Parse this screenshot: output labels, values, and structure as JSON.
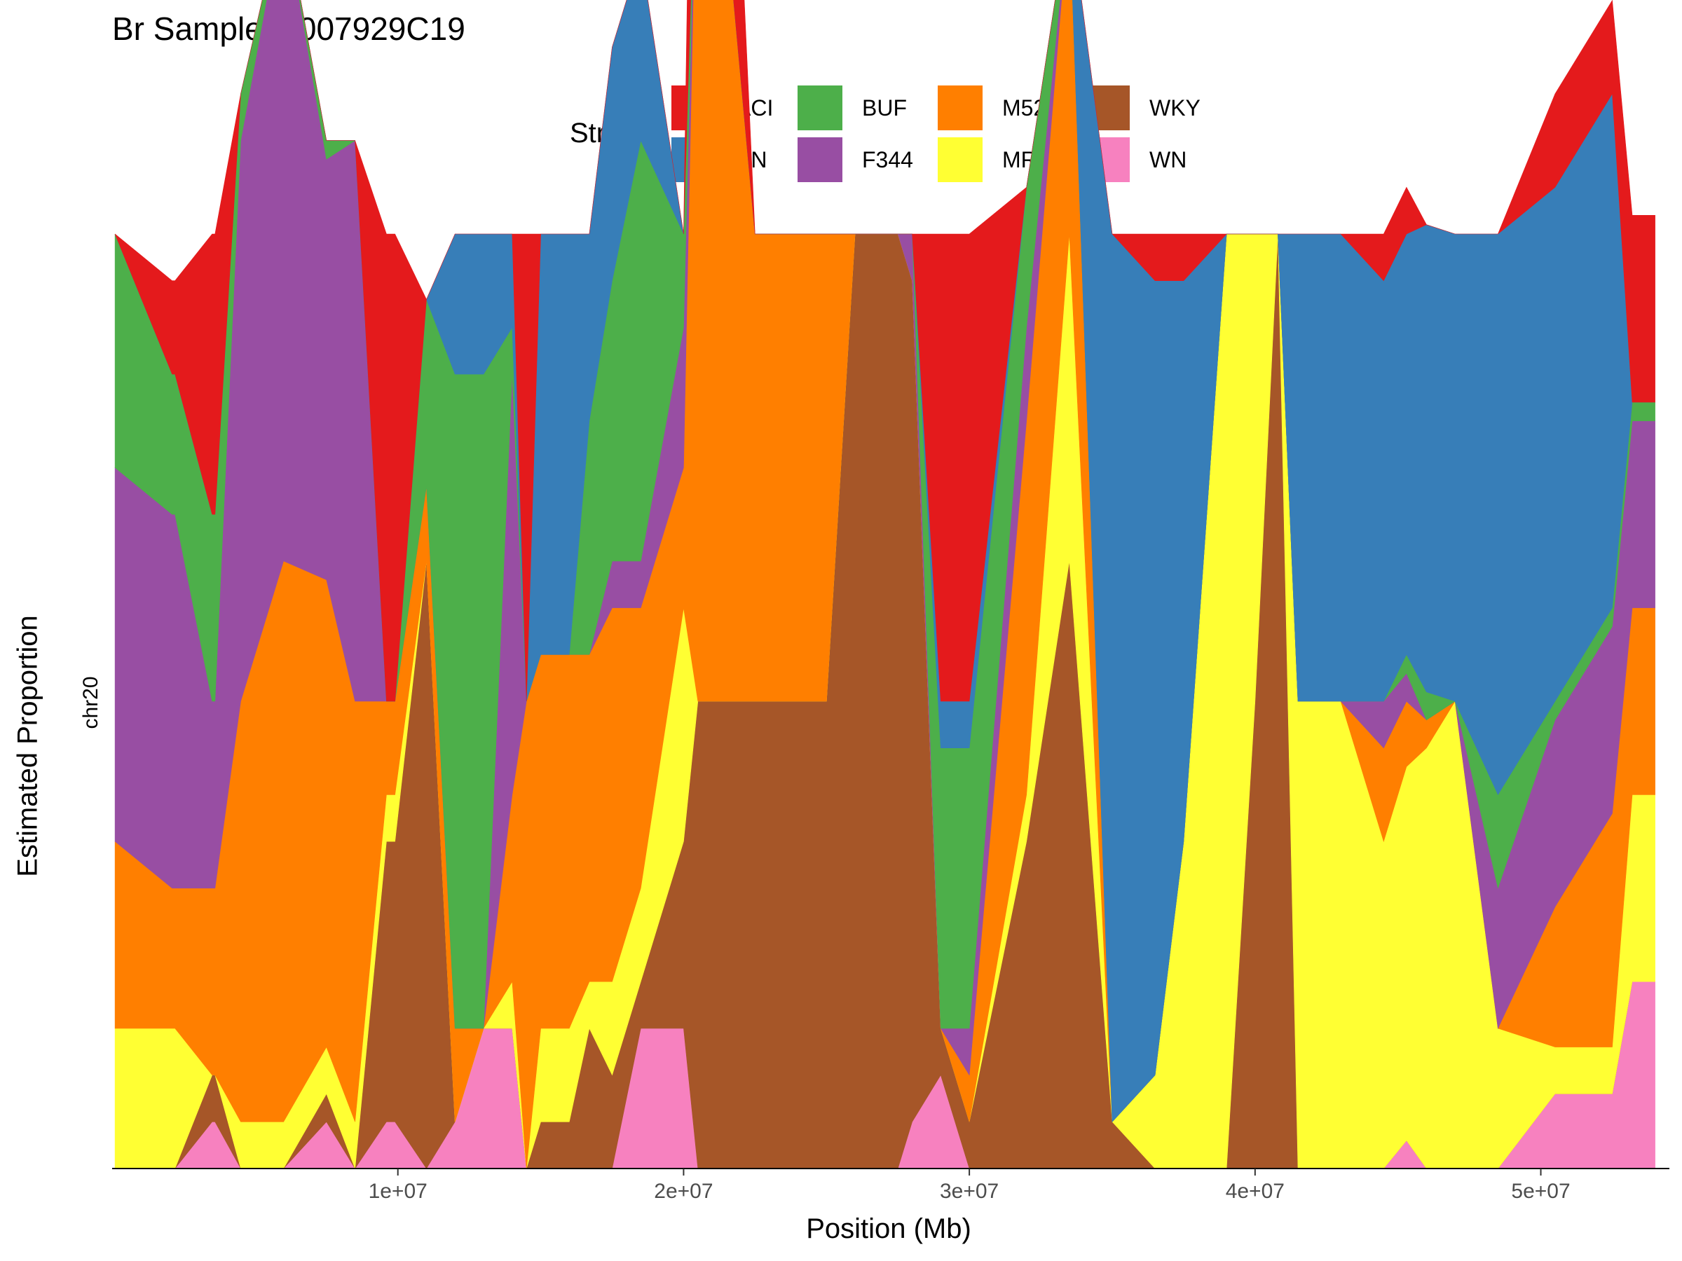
{
  "chart_data": {
    "type": "area",
    "title": "Br Sample: 0007929C19",
    "xlabel": "Position (Mb)",
    "ylabel": "Estimated Proportion",
    "facet_label": "chr20",
    "legend_title": "Strain",
    "legend_position": "top",
    "grid": false,
    "xlim": [
      0,
      54500000
    ],
    "ylim": [
      0,
      1
    ],
    "x_ticks": [
      10000000,
      20000000,
      30000000,
      40000000,
      50000000
    ],
    "x_tick_labels": [
      "1e+07",
      "2e+07",
      "3e+07",
      "4e+07",
      "5e+07"
    ],
    "series_order": [
      "ACI",
      "BN",
      "BUF",
      "F344",
      "M520",
      "MR",
      "WKY",
      "WN"
    ],
    "legend": [
      {
        "name": "ACI",
        "color": "#e41a1c"
      },
      {
        "name": "BN",
        "color": "#377eb8"
      },
      {
        "name": "BUF",
        "color": "#4daf4a"
      },
      {
        "name": "F344",
        "color": "#984ea3"
      },
      {
        "name": "M520",
        "color": "#ff7f00"
      },
      {
        "name": "MR",
        "color": "#ffff33"
      },
      {
        "name": "WKY",
        "color": "#a65628"
      },
      {
        "name": "WN",
        "color": "#f781bf"
      }
    ],
    "x": [
      100000,
      2100000,
      2200000,
      3500000,
      3600000,
      4500000,
      6000000,
      7500000,
      8500000,
      9600000,
      9900000,
      11000000,
      12000000,
      13000000,
      14000000,
      14500000,
      15000000,
      16000000,
      16700000,
      17500000,
      18500000,
      20000000,
      20500000,
      21000000,
      22500000,
      25000000,
      26000000,
      27500000,
      28000000,
      29000000,
      30000000,
      32000000,
      33500000,
      35000000,
      36500000,
      37500000,
      39000000,
      40000000,
      40800000,
      41500000,
      43000000,
      44500000,
      45300000,
      46000000,
      47000000,
      48500000,
      50500000,
      52500000,
      53200000,
      54000000
    ],
    "series": [
      {
        "name": "ACI",
        "values": [
          0.0,
          0.1,
          0.1,
          0.3,
          0.3,
          0.0,
          0.0,
          0.0,
          0.0,
          0.5,
          0.5,
          0.0,
          0.0,
          0.0,
          0.0,
          0.5,
          0.0,
          0.0,
          0.0,
          0.0,
          0.0,
          0.0,
          0.5,
          0.5,
          0.0,
          0.0,
          0.0,
          0.0,
          0.0,
          0.5,
          0.5,
          0.0,
          0.0,
          0.0,
          0.05,
          0.05,
          0.0,
          0.0,
          0.0,
          0.0,
          0.0,
          0.05,
          0.05,
          0.0,
          0.0,
          0.0,
          0.1,
          0.1,
          0.2,
          0.2
        ]
      },
      {
        "name": "BN",
        "values": [
          0.0,
          0.0,
          0.0,
          0.0,
          0.0,
          0.0,
          0.0,
          0.0,
          0.0,
          0.0,
          0.0,
          0.0,
          0.15,
          0.15,
          0.1,
          0.0,
          0.45,
          0.45,
          0.2,
          0.25,
          0.2,
          0.0,
          0.0,
          0.0,
          0.0,
          0.0,
          0.0,
          0.0,
          0.0,
          0.05,
          0.05,
          0.0,
          0.0,
          0.95,
          0.85,
          0.6,
          0.0,
          0.0,
          0.0,
          0.5,
          0.5,
          0.45,
          0.45,
          0.5,
          0.5,
          0.6,
          0.55,
          0.55,
          0.0,
          0.0
        ]
      },
      {
        "name": "BUF",
        "values": [
          0.25,
          0.15,
          0.15,
          0.2,
          0.2,
          0.05,
          0.0,
          0.02,
          0.0,
          0.0,
          0.0,
          0.2,
          0.7,
          0.7,
          0.05,
          0.0,
          0.0,
          0.0,
          0.25,
          0.3,
          0.45,
          0.1,
          0.0,
          0.0,
          0.0,
          0.0,
          0.0,
          0.0,
          0.0,
          0.3,
          0.3,
          0.15,
          0.0,
          0.0,
          0.0,
          0.0,
          0.0,
          0.0,
          0.0,
          0.0,
          0.0,
          0.0,
          0.02,
          0.03,
          0.0,
          0.1,
          0.02,
          0.02,
          0.02,
          0.02
        ]
      },
      {
        "name": "F344",
        "values": [
          0.4,
          0.4,
          0.4,
          0.2,
          0.2,
          0.6,
          0.7,
          0.45,
          0.6,
          0.0,
          0.0,
          0.0,
          0.0,
          0.0,
          0.45,
          0.0,
          0.0,
          0.0,
          0.0,
          0.05,
          0.05,
          0.15,
          0.0,
          0.0,
          0.0,
          0.0,
          0.0,
          0.0,
          0.05,
          0.0,
          0.05,
          0.1,
          0.0,
          0.0,
          0.0,
          0.0,
          0.0,
          0.0,
          0.0,
          0.0,
          0.0,
          0.05,
          0.03,
          0.0,
          0.0,
          0.15,
          0.2,
          0.2,
          0.2,
          0.2
        ]
      },
      {
        "name": "M520",
        "values": [
          0.2,
          0.15,
          0.15,
          0.2,
          0.2,
          0.45,
          0.6,
          0.5,
          0.45,
          0.1,
          0.1,
          0.08,
          0.1,
          0.0,
          0.2,
          0.5,
          0.4,
          0.4,
          0.35,
          0.4,
          0.3,
          0.15,
          1.0,
          1.0,
          0.5,
          0.5,
          0.0,
          0.0,
          0.0,
          0.0,
          0.05,
          0.4,
          0.35,
          0.0,
          0.0,
          0.0,
          0.0,
          0.0,
          0.0,
          0.0,
          0.0,
          0.1,
          0.07,
          0.03,
          0.0,
          0.0,
          0.15,
          0.25,
          0.2,
          0.2
        ]
      },
      {
        "name": "MR",
        "values": [
          0.15,
          0.15,
          0.15,
          0.0,
          0.0,
          0.05,
          0.05,
          0.05,
          0.05,
          0.05,
          0.05,
          0.0,
          0.0,
          0.0,
          0.05,
          0.0,
          0.1,
          0.1,
          0.05,
          0.1,
          0.1,
          0.25,
          0.0,
          0.0,
          0.0,
          0.0,
          0.0,
          0.0,
          0.0,
          0.0,
          0.0,
          0.05,
          0.35,
          0.0,
          0.1,
          0.35,
          1.0,
          0.5,
          0.0,
          0.5,
          0.5,
          0.35,
          0.4,
          0.45,
          0.5,
          0.15,
          0.05,
          0.05,
          0.2,
          0.2
        ]
      },
      {
        "name": "WKY",
        "values": [
          0.0,
          0.0,
          0.0,
          0.05,
          0.05,
          0.0,
          0.0,
          0.03,
          0.0,
          0.3,
          0.3,
          0.65,
          0.0,
          0.0,
          0.0,
          0.0,
          0.05,
          0.05,
          0.15,
          0.1,
          0.05,
          0.2,
          0.5,
          0.5,
          0.5,
          0.5,
          1.0,
          1.0,
          0.9,
          0.05,
          0.05,
          0.35,
          0.65,
          0.05,
          0.0,
          0.0,
          0.0,
          0.5,
          1.0,
          0.0,
          0.0,
          0.0,
          0.0,
          0.0,
          0.0,
          0.0,
          0.0,
          0.0,
          0.0,
          0.0
        ]
      },
      {
        "name": "WN",
        "values": [
          0.0,
          0.0,
          0.0,
          0.05,
          0.05,
          0.0,
          0.0,
          0.05,
          0.0,
          0.05,
          0.05,
          0.0,
          0.05,
          0.15,
          0.15,
          0.0,
          0.0,
          0.0,
          0.0,
          0.0,
          0.15,
          0.15,
          0.0,
          0.0,
          0.0,
          0.0,
          0.0,
          0.0,
          0.05,
          0.1,
          0.0,
          0.0,
          0.0,
          0.0,
          0.0,
          0.0,
          0.0,
          0.0,
          0.0,
          0.0,
          0.0,
          0.0,
          0.03,
          0.0,
          0.0,
          0.0,
          0.08,
          0.08,
          0.2,
          0.2
        ]
      }
    ]
  }
}
